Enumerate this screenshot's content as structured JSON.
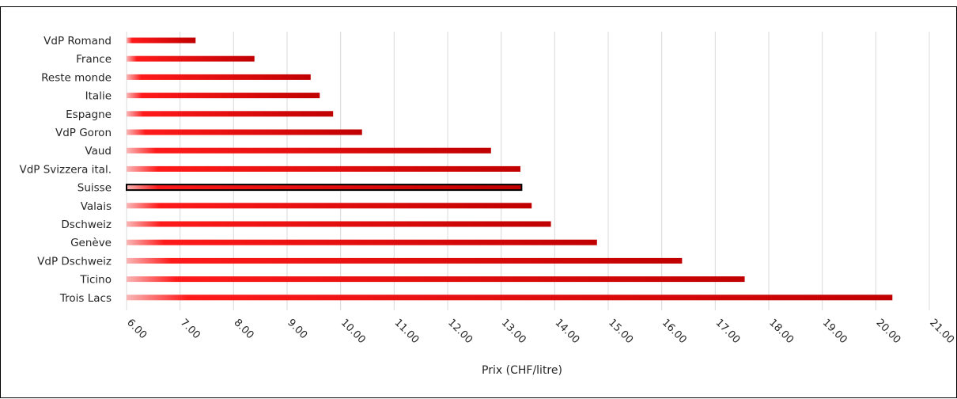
{
  "chart_data": {
    "type": "bar",
    "orientation": "horizontal",
    "title": "",
    "xlabel": "Prix (CHF/litre)",
    "ylabel": "",
    "xlim": [
      6,
      21
    ],
    "x_tick_step": 1,
    "x_tick_labels": [
      "6.00",
      "7.00",
      "8.00",
      "9.00",
      "10.00",
      "11.00",
      "12.00",
      "13.00",
      "14.00",
      "15.00",
      "16.00",
      "17.00",
      "18.00",
      "19.00",
      "20.00",
      "21.00"
    ],
    "grid": "vertical",
    "legend": "none",
    "categories": [
      "VdP Romand",
      "France",
      "Reste monde",
      "Italie",
      "Espagne",
      "VdP Goron",
      "Vaud",
      "VdP Svizzera ital.",
      "Suisse",
      "Valais",
      "Dschweiz",
      "Genève",
      "VdP Dschweiz",
      "Ticino",
      "Trois Lacs"
    ],
    "values": [
      7.29,
      8.39,
      9.44,
      9.61,
      9.86,
      10.4,
      12.81,
      13.36,
      13.38,
      13.57,
      13.93,
      14.79,
      16.38,
      17.55,
      20.31
    ],
    "highlighted_category": "Suisse",
    "colors": {
      "bar_light": "#f9b6b6",
      "bar_bright": "#ff1a1a",
      "bar_dark": "#c00000",
      "highlight_outline": "#000000",
      "grid": "#d9d9d9"
    }
  }
}
